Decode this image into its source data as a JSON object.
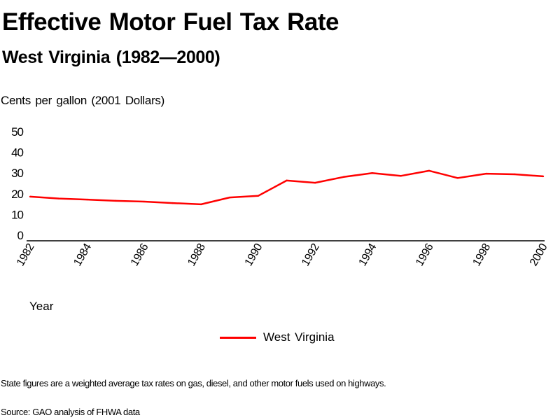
{
  "chart_data": {
    "type": "line",
    "title": "Effective Motor Fuel Tax Rate",
    "subtitle": "West Virginia (1982—2000)",
    "ylabel": "Cents per gallon (2001 Dollars)",
    "xlabel": "Year",
    "ylim": [
      0,
      50
    ],
    "yticks": [
      "0",
      "10",
      "20",
      "30",
      "40",
      "50"
    ],
    "xlim": [
      1982,
      2000
    ],
    "xticks": [
      "1982",
      "1984",
      "1986",
      "1988",
      "1990",
      "1992",
      "1994",
      "1996",
      "1998",
      "2000"
    ],
    "grid": false,
    "legend_position": "bottom-center",
    "x": [
      1982,
      1983,
      1984,
      1985,
      1986,
      1987,
      1988,
      1989,
      1990,
      1991,
      1992,
      1993,
      1994,
      1995,
      1996,
      1997,
      1998,
      1999,
      2000
    ],
    "series": [
      {
        "name": "West Virginia",
        "color": "#ff0000",
        "values": [
          18.6,
          17.7,
          17.2,
          16.6,
          16.2,
          15.5,
          14.9,
          18.2,
          19.0,
          26.4,
          25.3,
          28.1,
          30.0,
          28.6,
          31.1,
          27.6,
          29.7,
          29.4,
          28.4
        ]
      }
    ],
    "footnote": "State figures are a weighted average tax rates on gas, diesel, and other motor fuels used on highways.",
    "source": "Source: GAO analysis of FHWA data"
  }
}
